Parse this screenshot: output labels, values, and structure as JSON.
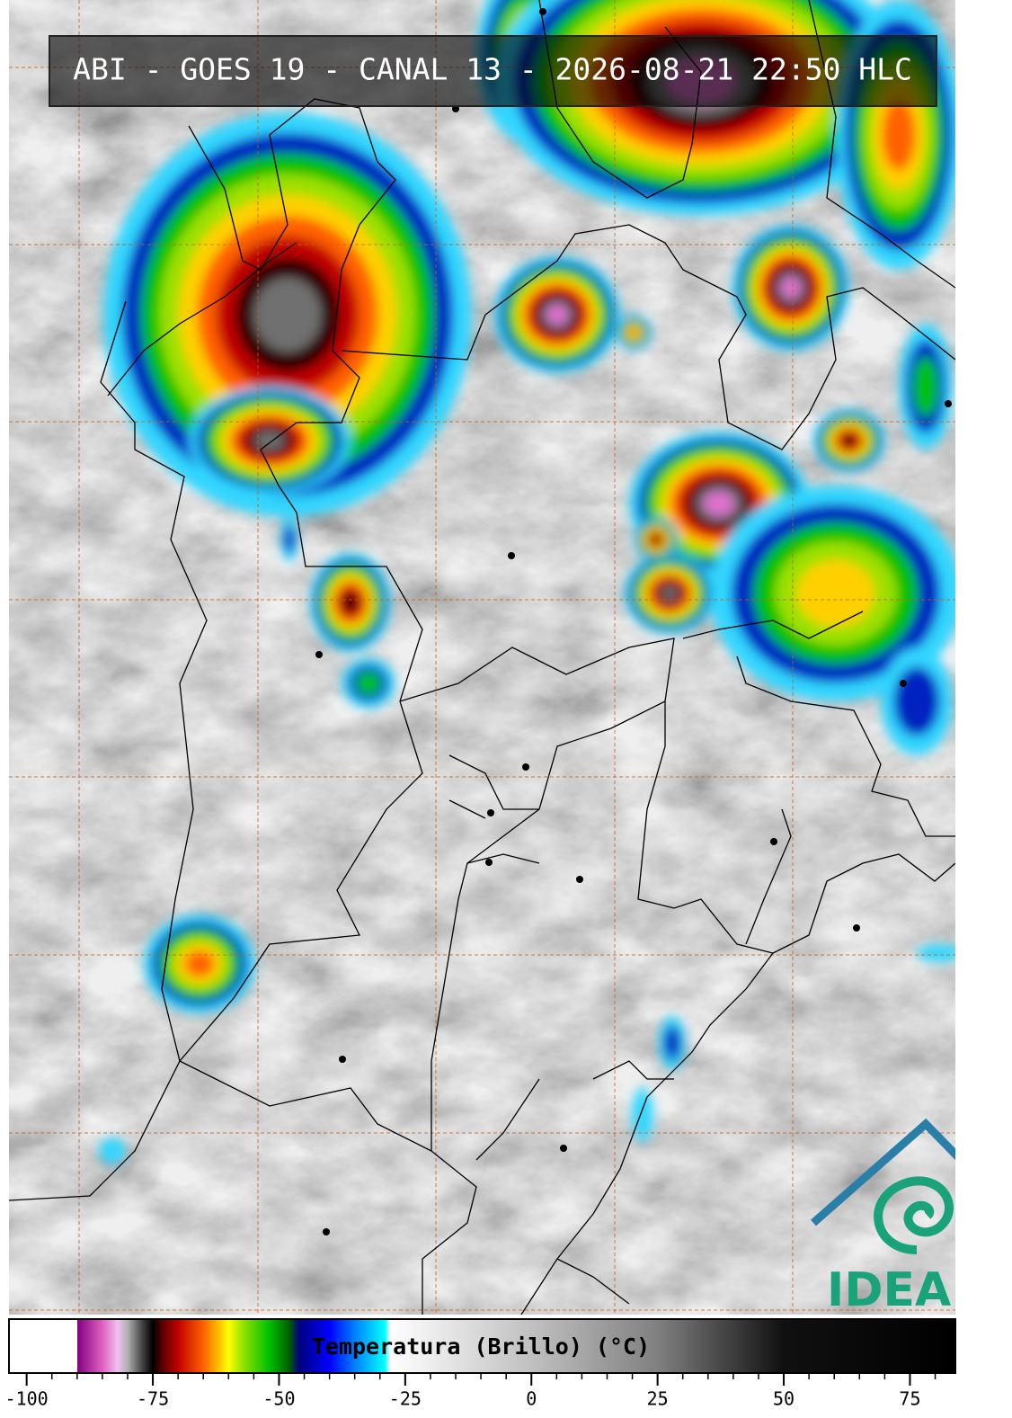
{
  "header": {
    "title": "ABI - GOES 19 - CANAL 13 - 2026-08-21 22:50 HLC"
  },
  "colorbar": {
    "label": "Temperatura (Brillo) (°C)",
    "lim": [
      -103.5,
      84
    ],
    "ticks": [
      -100,
      -75,
      -50,
      -25,
      0,
      25,
      50,
      75
    ],
    "minor_step": 5,
    "stops": [
      {
        "value": -103.5,
        "color": "#ffffff"
      },
      {
        "value": -90,
        "color": "#ffffff"
      },
      {
        "value": -90,
        "color": "#800080"
      },
      {
        "value": -85,
        "color": "#e060c0"
      },
      {
        "value": -82,
        "color": "#f0c0f0"
      },
      {
        "value": -80,
        "color": "#b0b0b0"
      },
      {
        "value": -77,
        "color": "#404040"
      },
      {
        "value": -75,
        "color": "#000000"
      },
      {
        "value": -73,
        "color": "#600000"
      },
      {
        "value": -70,
        "color": "#c00000"
      },
      {
        "value": -65,
        "color": "#ff6000"
      },
      {
        "value": -60,
        "color": "#ffff00"
      },
      {
        "value": -57,
        "color": "#90e000"
      },
      {
        "value": -52,
        "color": "#00c000"
      },
      {
        "value": -48,
        "color": "#006000"
      },
      {
        "value": -46,
        "color": "#000080"
      },
      {
        "value": -40,
        "color": "#0000ff"
      },
      {
        "value": -35,
        "color": "#0080ff"
      },
      {
        "value": -29,
        "color": "#00ffff"
      },
      {
        "value": -28,
        "color": "#ffffff"
      },
      {
        "value": 0,
        "color": "#c0c0c0"
      },
      {
        "value": 25,
        "color": "#808080"
      },
      {
        "value": 50,
        "color": "#101010"
      },
      {
        "value": 84,
        "color": "#000000"
      }
    ]
  },
  "logo": {
    "text": "IDEAM"
  }
}
